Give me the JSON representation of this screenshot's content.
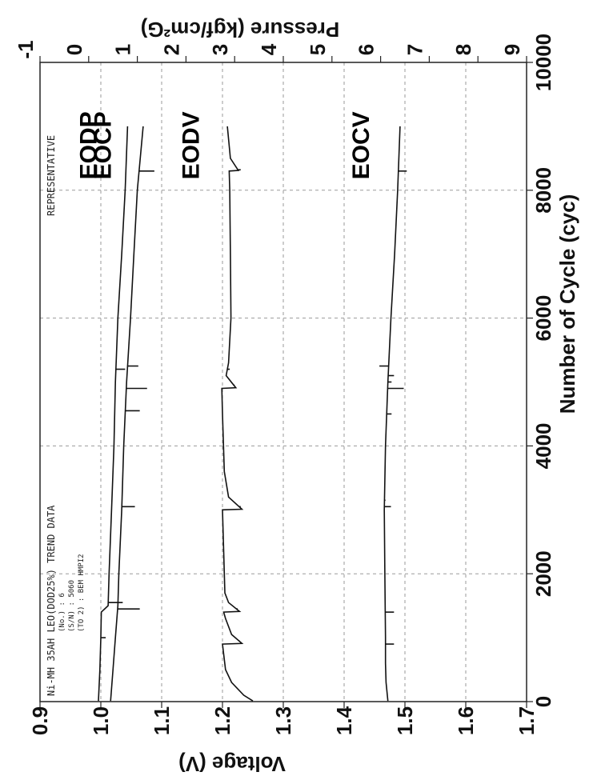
{
  "chart_data": {
    "type": "line",
    "title": "",
    "orientation": "rotated-90-clockwise",
    "xlabel": "Number of Cycle (cyc)",
    "ylabel_left": "Voltage (V)",
    "ylabel_right": "Pressure (kgf/cm²G)",
    "xlim": [
      0,
      10000
    ],
    "ylim_left": [
      0.9,
      1.7
    ],
    "ylim_right": [
      -1,
      9
    ],
    "x_ticks": [
      "0",
      "2000",
      "4000",
      "6000",
      "8000",
      "10000"
    ],
    "y_left_ticks": [
      "0.9",
      "1.0",
      "1.1",
      "1.2",
      "1.3",
      "1.4",
      "1.5",
      "1.6",
      "1.7"
    ],
    "y_right_ticks": [
      "-1",
      "0",
      "1",
      "2",
      "3",
      "4",
      "5",
      "6",
      "7",
      "8",
      "9"
    ],
    "grid": true,
    "annotations": {
      "header_left": "Ni-MH 35AH LEO(DOD25%) TREND DATA",
      "header_right": "REPRESENTATIVE",
      "info_lines": [
        "(No.) : 6",
        "(S/N) : 5060",
        "(TO 2) : BEM HMPI2"
      ]
    },
    "series": [
      {
        "name": "EOCV",
        "axis": "left",
        "label_at_x": 8700,
        "points": [
          [
            10,
            1.472
          ],
          [
            300,
            1.469
          ],
          [
            600,
            1.468
          ],
          [
            1000,
            1.468
          ],
          [
            2000,
            1.467
          ],
          [
            3000,
            1.466
          ],
          [
            4000,
            1.468
          ],
          [
            5000,
            1.472
          ],
          [
            6000,
            1.477
          ],
          [
            7000,
            1.483
          ],
          [
            8000,
            1.488
          ],
          [
            9000,
            1.492
          ]
        ],
        "spikes": [
          [
            900,
            1.482
          ],
          [
            1400,
            1.482
          ],
          [
            3050,
            1.477
          ],
          [
            3150,
            1.468
          ],
          [
            4500,
            1.478
          ],
          [
            4900,
            1.498
          ],
          [
            5000,
            1.478
          ],
          [
            5100,
            1.482
          ],
          [
            5250,
            1.458
          ],
          [
            8300,
            1.503
          ]
        ]
      },
      {
        "name": "EODV",
        "axis": "left",
        "label_at_x": 8700,
        "points": [
          [
            10,
            1.25
          ],
          [
            100,
            1.235
          ],
          [
            300,
            1.215
          ],
          [
            500,
            1.205
          ],
          [
            900,
            1.2
          ],
          [
            910,
            1.232
          ],
          [
            1050,
            1.215
          ],
          [
            1300,
            1.205
          ],
          [
            1400,
            1.202
          ],
          [
            1410,
            1.228
          ],
          [
            1550,
            1.21
          ],
          [
            1700,
            1.204
          ],
          [
            3000,
            1.2
          ],
          [
            3010,
            1.232
          ],
          [
            3200,
            1.21
          ],
          [
            3600,
            1.203
          ],
          [
            4500,
            1.2
          ],
          [
            4900,
            1.199
          ],
          [
            4910,
            1.222
          ],
          [
            5100,
            1.206
          ],
          [
            5300,
            1.21
          ],
          [
            6000,
            1.214
          ],
          [
            7000,
            1.213
          ],
          [
            8000,
            1.212
          ],
          [
            8300,
            1.211
          ],
          [
            8310,
            1.226
          ],
          [
            8500,
            1.213
          ],
          [
            9000,
            1.208
          ]
        ],
        "spikes": [
          [
            950,
            1.228
          ],
          [
            1450,
            1.225
          ],
          [
            3050,
            1.23
          ],
          [
            4950,
            1.22
          ],
          [
            5200,
            1.212
          ],
          [
            8320,
            1.23
          ]
        ]
      },
      {
        "name": "EOCP",
        "axis": "right",
        "label_at_x": 8700,
        "points": [
          [
            10,
            0.45
          ],
          [
            500,
            0.5
          ],
          [
            1000,
            0.55
          ],
          [
            1500,
            0.6
          ],
          [
            2000,
            0.62
          ],
          [
            3000,
            0.68
          ],
          [
            4000,
            0.72
          ],
          [
            5000,
            0.78
          ],
          [
            6000,
            0.86
          ],
          [
            7000,
            0.93
          ],
          [
            8000,
            1.0
          ],
          [
            9000,
            1.12
          ]
        ],
        "spikes": [
          [
            1450,
            1.05
          ],
          [
            3050,
            0.95
          ],
          [
            4550,
            1.05
          ],
          [
            4900,
            1.2
          ],
          [
            5250,
            1.02
          ],
          [
            8300,
            1.35
          ]
        ]
      },
      {
        "name": "EODP",
        "axis": "right",
        "label_at_x": 8700,
        "points": [
          [
            10,
            0.2
          ],
          [
            500,
            0.23
          ],
          [
            1000,
            0.25
          ],
          [
            1400,
            0.26
          ],
          [
            1500,
            0.4
          ],
          [
            2000,
            0.42
          ],
          [
            3000,
            0.47
          ],
          [
            4000,
            0.52
          ],
          [
            5000,
            0.55
          ],
          [
            6000,
            0.6
          ],
          [
            7000,
            0.68
          ],
          [
            8000,
            0.75
          ],
          [
            9000,
            0.8
          ]
        ],
        "spikes": [
          [
            1000,
            0.35
          ],
          [
            1550,
            0.7
          ],
          [
            5200,
            0.75
          ]
        ]
      }
    ]
  }
}
